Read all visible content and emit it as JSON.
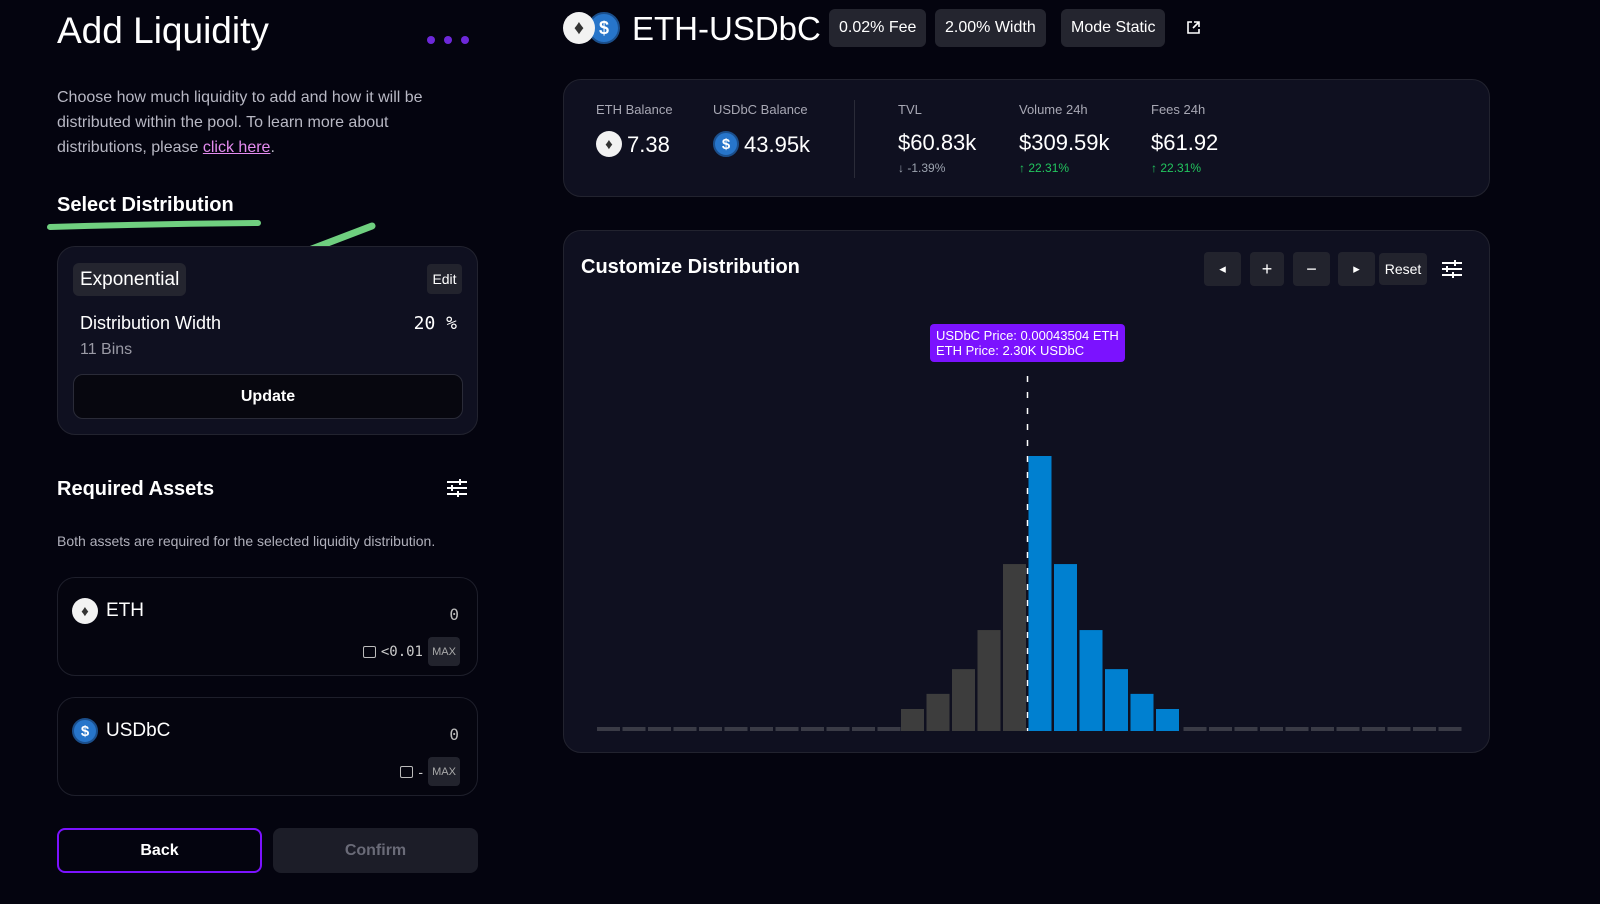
{
  "left": {
    "title": "Add Liquidity",
    "description": "Choose how much liquidity to add and how it will be distributed within the pool. To learn more about distributions, please ",
    "link": "click here",
    "period": ".",
    "select_distribution": "Select Distribution",
    "distribution": {
      "type": "Exponential",
      "edit": "Edit",
      "width_label": "Distribution Width",
      "width_value": "20",
      "width_unit": "%",
      "bins": "11 Bins",
      "update": "Update"
    },
    "required_assets": "Required Assets",
    "required_note": "Both assets are required for the selected liquidity distribution.",
    "assets": [
      {
        "symbol": "ETH",
        "amount": "0",
        "balance": "<0.01",
        "max": "MAX",
        "icon": "eth-icon"
      },
      {
        "symbol": "USDbC",
        "amount": "0",
        "balance": "-",
        "max": "MAX",
        "icon": "usdc-icon"
      }
    ],
    "back": "Back",
    "confirm": "Confirm"
  },
  "pool": {
    "pair": "ETH-USDbC",
    "fee": "0.02% Fee",
    "width": "2.00% Width",
    "mode": "Mode Static"
  },
  "stats": {
    "eth_balance_label": "ETH Balance",
    "eth_balance": "7.38",
    "usd_balance_label": "USDbC Balance",
    "usd_balance": "43.95k",
    "tvl_label": "TVL",
    "tvl": "$60.83k",
    "tvl_change": "-1.39%",
    "vol_label": "Volume 24h",
    "vol": "$309.59k",
    "vol_change": "22.31%",
    "fees_label": "Fees 24h",
    "fees": "$61.92",
    "fees_change": "22.31%"
  },
  "chart": {
    "title": "Customize Distribution",
    "reset": "Reset",
    "tooltip_line1": "USDbC Price:  0.00043504 ETH",
    "tooltip_line2": "ETH Price:  2.30K USDbC"
  },
  "chart_data": {
    "type": "bar",
    "values": [
      8,
      13.5,
      22.5,
      36.7,
      60.7,
      100,
      60.7,
      36.7,
      22.5,
      13.5,
      8
    ],
    "asset": [
      "ETH",
      "ETH",
      "ETH",
      "ETH",
      "ETH",
      "USDbC",
      "USDbC",
      "USDbC",
      "USDbC",
      "USDbC",
      "USDbC"
    ],
    "empty_bins_left": 12,
    "empty_bins_right": 11,
    "colors": {
      "ETH": "#3d3d3d",
      "USDbC": "#0080d0",
      "empty": "#3a3b46"
    }
  },
  "colors": {
    "accent": "#7b12ff",
    "positive": "#22c55e",
    "negative": "#9ca3af",
    "annotation": "#6fcf7f"
  }
}
